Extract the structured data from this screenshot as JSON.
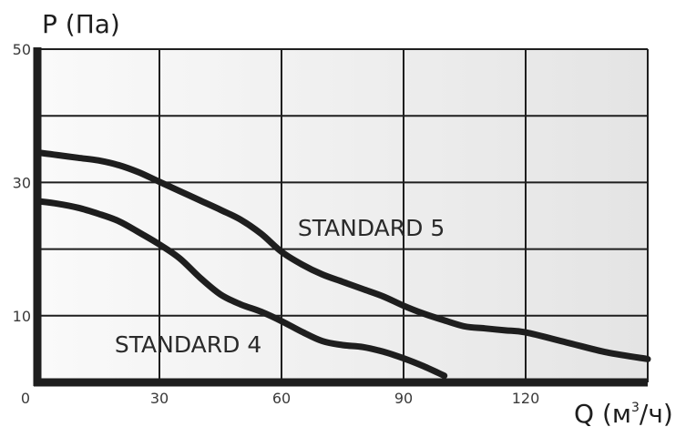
{
  "chart_data": {
    "type": "line",
    "title": "",
    "ylabel": "P (Па)",
    "xlabel_base": "Q (м",
    "xlabel_sup": "3",
    "xlabel_tail": "/ч)",
    "xlim": [
      0,
      150
    ],
    "ylim": [
      0,
      50
    ],
    "x_ticks": [
      0,
      30,
      60,
      90,
      120
    ],
    "x_tick_labels": [
      "0",
      "30",
      "60",
      "90",
      "120"
    ],
    "y_ticks": [
      10,
      30,
      50
    ],
    "y_tick_labels": [
      "10",
      "30",
      "50"
    ],
    "grid": true,
    "x_grid": [
      0,
      30,
      60,
      90,
      120,
      150
    ],
    "y_grid": [
      0,
      10,
      20,
      30,
      40,
      50
    ],
    "legend": "inline labels",
    "colors": {
      "line": "#1e1e1e",
      "plot_bg_light": "#fafafa",
      "plot_bg_dark": "#e4e4e4",
      "grid": "#1e1e1e"
    },
    "series": [
      {
        "name": "STANDARD 5",
        "label_at": [
          64,
          22
        ],
        "x": [
          0,
          5,
          10,
          15,
          20,
          25,
          30,
          35,
          40,
          45,
          50,
          55,
          60,
          65,
          70,
          75,
          80,
          85,
          90,
          95,
          100,
          105,
          110,
          115,
          120,
          130,
          140,
          150
        ],
        "y": [
          34.5,
          34.1,
          33.7,
          33.3,
          32.6,
          31.5,
          30.1,
          28.7,
          27.3,
          25.9,
          24.4,
          22.3,
          19.6,
          17.7,
          16.2,
          15.1,
          14.0,
          12.9,
          11.5,
          10.3,
          9.3,
          8.4,
          8.1,
          7.8,
          7.5,
          6.0,
          4.5,
          3.5
        ]
      },
      {
        "name": "STANDARD 4",
        "label_at": [
          19,
          4.5
        ],
        "x": [
          0,
          5,
          10,
          15,
          20,
          25,
          30,
          35,
          40,
          45,
          50,
          55,
          60,
          65,
          70,
          75,
          80,
          85,
          90,
          95,
          100
        ],
        "y": [
          27.2,
          26.8,
          26.2,
          25.3,
          24.2,
          22.5,
          20.7,
          18.6,
          15.7,
          13.2,
          11.7,
          10.6,
          9.2,
          7.6,
          6.2,
          5.6,
          5.3,
          4.6,
          3.6,
          2.4,
          1.0
        ]
      }
    ]
  }
}
